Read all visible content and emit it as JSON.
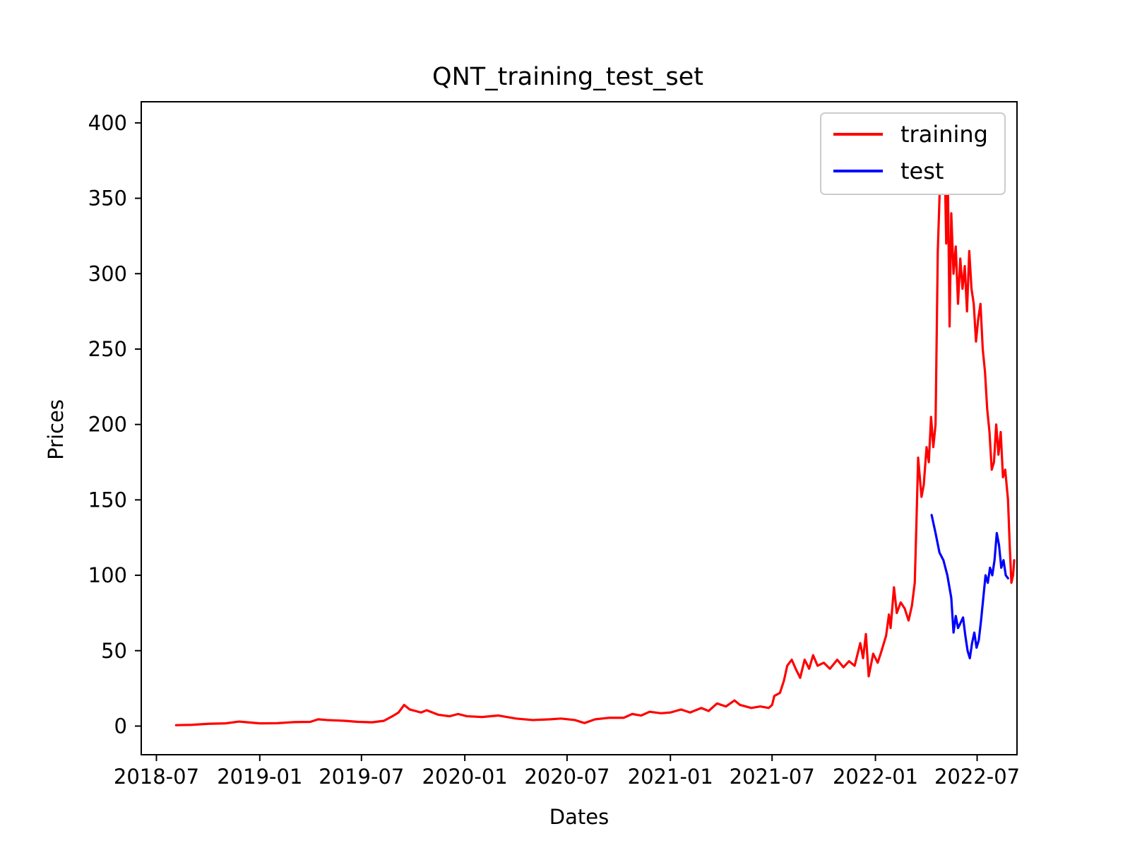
{
  "chart_data": {
    "type": "line",
    "title": "QNT_training_test_set",
    "xlabel": "Dates",
    "ylabel": "Prices",
    "xlim": [
      "2018-06-04",
      "2022-09-10"
    ],
    "ylim": [
      -19,
      414
    ],
    "x_ticks": [
      "2018-07",
      "2019-01",
      "2019-07",
      "2020-01",
      "2020-07",
      "2021-01",
      "2021-07",
      "2022-01",
      "2022-07"
    ],
    "y_ticks": [
      0,
      50,
      100,
      150,
      200,
      250,
      300,
      350,
      400
    ],
    "grid": false,
    "legend_position": "top-right",
    "series": [
      {
        "name": "training",
        "color": "#ff0000",
        "points": [
          [
            "2018-08-05",
            0.6
          ],
          [
            "2018-09-01",
            0.8
          ],
          [
            "2018-10-01",
            1.5
          ],
          [
            "2018-11-01",
            1.8
          ],
          [
            "2018-11-25",
            3.0
          ],
          [
            "2018-12-10",
            2.5
          ],
          [
            "2019-01-01",
            1.8
          ],
          [
            "2019-02-01",
            1.9
          ],
          [
            "2019-03-01",
            2.6
          ],
          [
            "2019-04-01",
            2.8
          ],
          [
            "2019-04-15",
            4.5
          ],
          [
            "2019-05-01",
            4.0
          ],
          [
            "2019-06-01",
            3.5
          ],
          [
            "2019-06-25",
            2.8
          ],
          [
            "2019-07-20",
            2.5
          ],
          [
            "2019-08-10",
            3.5
          ],
          [
            "2019-08-25",
            6.5
          ],
          [
            "2019-09-05",
            9.0
          ],
          [
            "2019-09-15",
            14.0
          ],
          [
            "2019-09-25",
            11.0
          ],
          [
            "2019-10-15",
            9.0
          ],
          [
            "2019-10-25",
            10.5
          ],
          [
            "2019-11-15",
            7.5
          ],
          [
            "2019-12-05",
            6.5
          ],
          [
            "2019-12-20",
            8.0
          ],
          [
            "2020-01-05",
            6.5
          ],
          [
            "2020-02-01",
            6.0
          ],
          [
            "2020-03-01",
            7.0
          ],
          [
            "2020-04-01",
            5.0
          ],
          [
            "2020-05-01",
            4.0
          ],
          [
            "2020-06-01",
            4.5
          ],
          [
            "2020-06-20",
            5.0
          ],
          [
            "2020-07-15",
            4.0
          ],
          [
            "2020-08-01",
            2.0
          ],
          [
            "2020-08-20",
            4.5
          ],
          [
            "2020-09-15",
            5.5
          ],
          [
            "2020-10-10",
            5.5
          ],
          [
            "2020-10-25",
            8.0
          ],
          [
            "2020-11-10",
            7.0
          ],
          [
            "2020-11-25",
            9.5
          ],
          [
            "2020-12-15",
            8.5
          ],
          [
            "2021-01-01",
            9.0
          ],
          [
            "2021-01-20",
            11.0
          ],
          [
            "2021-02-05",
            9.0
          ],
          [
            "2021-02-25",
            12.0
          ],
          [
            "2021-03-10",
            10.0
          ],
          [
            "2021-03-25",
            15.0
          ],
          [
            "2021-04-10",
            13.0
          ],
          [
            "2021-04-25",
            17.0
          ],
          [
            "2021-05-05",
            14.0
          ],
          [
            "2021-05-25",
            12.0
          ],
          [
            "2021-06-10",
            13.0
          ],
          [
            "2021-06-25",
            12.0
          ],
          [
            "2021-07-01",
            14.0
          ],
          [
            "2021-07-05",
            20.0
          ],
          [
            "2021-07-15",
            22.0
          ],
          [
            "2021-07-22",
            30.0
          ],
          [
            "2021-07-28",
            40.0
          ],
          [
            "2021-08-05",
            44.0
          ],
          [
            "2021-08-12",
            38.0
          ],
          [
            "2021-08-20",
            32.0
          ],
          [
            "2021-08-28",
            44.0
          ],
          [
            "2021-09-05",
            38.0
          ],
          [
            "2021-09-12",
            47.0
          ],
          [
            "2021-09-20",
            40.0
          ],
          [
            "2021-10-01",
            42.0
          ],
          [
            "2021-10-12",
            38.0
          ],
          [
            "2021-10-25",
            44.0
          ],
          [
            "2021-11-05",
            39.0
          ],
          [
            "2021-11-15",
            43.0
          ],
          [
            "2021-11-25",
            40.0
          ],
          [
            "2021-12-05",
            55.0
          ],
          [
            "2021-12-10",
            45.0
          ],
          [
            "2021-12-15",
            61.0
          ],
          [
            "2021-12-20",
            33.0
          ],
          [
            "2021-12-28",
            48.0
          ],
          [
            "2022-01-05",
            42.0
          ],
          [
            "2022-01-12",
            50.0
          ],
          [
            "2022-01-20",
            60.0
          ],
          [
            "2022-01-25",
            74.0
          ],
          [
            "2022-01-28",
            65.0
          ],
          [
            "2022-02-03",
            92.0
          ],
          [
            "2022-02-08",
            75.0
          ],
          [
            "2022-02-15",
            82.0
          ],
          [
            "2022-02-22",
            78.0
          ],
          [
            "2022-03-01",
            70.0
          ],
          [
            "2022-03-07",
            80.0
          ],
          [
            "2022-03-12",
            95.0
          ],
          [
            "2022-03-15",
            135.0
          ],
          [
            "2022-03-18",
            178.0
          ],
          [
            "2022-03-21",
            165.0
          ],
          [
            "2022-03-24",
            152.0
          ],
          [
            "2022-03-28",
            160.0
          ],
          [
            "2022-04-02",
            185.0
          ],
          [
            "2022-04-06",
            175.0
          ],
          [
            "2022-04-10",
            205.0
          ],
          [
            "2022-04-14",
            185.0
          ],
          [
            "2022-04-18",
            200.0
          ],
          [
            "2022-04-22",
            315.0
          ],
          [
            "2022-04-25",
            350.0
          ],
          [
            "2022-04-28",
            394.0
          ],
          [
            "2022-05-01",
            370.0
          ],
          [
            "2022-05-04",
            380.0
          ],
          [
            "2022-05-07",
            320.0
          ],
          [
            "2022-05-10",
            360.0
          ],
          [
            "2022-05-13",
            265.0
          ],
          [
            "2022-05-16",
            340.0
          ],
          [
            "2022-05-20",
            300.0
          ],
          [
            "2022-05-24",
            318.0
          ],
          [
            "2022-05-28",
            280.0
          ],
          [
            "2022-06-01",
            310.0
          ],
          [
            "2022-06-05",
            290.0
          ],
          [
            "2022-06-09",
            305.0
          ],
          [
            "2022-06-13",
            275.0
          ],
          [
            "2022-06-17",
            315.0
          ],
          [
            "2022-06-21",
            290.0
          ],
          [
            "2022-06-25",
            280.0
          ],
          [
            "2022-06-29",
            255.0
          ],
          [
            "2022-07-03",
            270.0
          ],
          [
            "2022-07-07",
            280.0
          ],
          [
            "2022-07-11",
            250.0
          ],
          [
            "2022-07-15",
            235.0
          ],
          [
            "2022-07-19",
            210.0
          ],
          [
            "2022-07-23",
            195.0
          ],
          [
            "2022-07-27",
            170.0
          ],
          [
            "2022-07-31",
            175.0
          ],
          [
            "2022-08-04",
            200.0
          ],
          [
            "2022-08-08",
            180.0
          ],
          [
            "2022-08-12",
            195.0
          ],
          [
            "2022-08-16",
            165.0
          ],
          [
            "2022-08-20",
            170.0
          ],
          [
            "2022-08-25",
            150.0
          ],
          [
            "2022-08-28",
            120.0
          ],
          [
            "2022-08-31",
            95.0
          ],
          [
            "2022-09-03",
            100.0
          ],
          [
            "2022-09-05",
            110.0
          ]
        ]
      },
      {
        "name": "test",
        "color": "#0000ff",
        "points": [
          [
            "2022-04-11",
            140.0
          ],
          [
            "2022-04-18",
            128.0
          ],
          [
            "2022-04-25",
            115.0
          ],
          [
            "2022-05-02",
            110.0
          ],
          [
            "2022-05-09",
            100.0
          ],
          [
            "2022-05-16",
            85.0
          ],
          [
            "2022-05-20",
            62.0
          ],
          [
            "2022-05-24",
            73.0
          ],
          [
            "2022-05-28",
            65.0
          ],
          [
            "2022-06-01",
            68.0
          ],
          [
            "2022-06-06",
            72.0
          ],
          [
            "2022-06-10",
            60.0
          ],
          [
            "2022-06-14",
            50.0
          ],
          [
            "2022-06-18",
            45.0
          ],
          [
            "2022-06-22",
            55.0
          ],
          [
            "2022-06-26",
            62.0
          ],
          [
            "2022-06-30",
            52.0
          ],
          [
            "2022-07-04",
            57.0
          ],
          [
            "2022-07-08",
            70.0
          ],
          [
            "2022-07-12",
            85.0
          ],
          [
            "2022-07-16",
            100.0
          ],
          [
            "2022-07-20",
            95.0
          ],
          [
            "2022-07-24",
            105.0
          ],
          [
            "2022-07-28",
            100.0
          ],
          [
            "2022-08-01",
            110.0
          ],
          [
            "2022-08-05",
            128.0
          ],
          [
            "2022-08-09",
            120.0
          ],
          [
            "2022-08-13",
            105.0
          ],
          [
            "2022-08-17",
            110.0
          ],
          [
            "2022-08-21",
            100.0
          ],
          [
            "2022-08-25",
            98.0
          ]
        ]
      }
    ]
  }
}
